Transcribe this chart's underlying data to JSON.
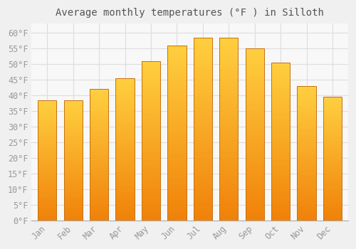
{
  "title": "Average monthly temperatures (°F ) in Silloth",
  "months": [
    "Jan",
    "Feb",
    "Mar",
    "Apr",
    "May",
    "Jun",
    "Jul",
    "Aug",
    "Sep",
    "Oct",
    "Nov",
    "Dec"
  ],
  "values": [
    38.5,
    38.5,
    42.0,
    45.5,
    51.0,
    56.0,
    58.5,
    58.5,
    55.0,
    50.5,
    43.0,
    39.5
  ],
  "bar_color_bottom": "#F0820A",
  "bar_color_top": "#FFD040",
  "bar_edge_color": "#C87010",
  "background_color": "#F0F0F0",
  "plot_bg_color": "#F8F8F8",
  "grid_color": "#DDDDDD",
  "tick_label_color": "#999999",
  "title_color": "#555555",
  "ylim": [
    0,
    63
  ],
  "yticks": [
    0,
    5,
    10,
    15,
    20,
    25,
    30,
    35,
    40,
    45,
    50,
    55,
    60
  ],
  "title_fontsize": 10,
  "tick_fontsize": 8.5,
  "bar_width": 0.72
}
